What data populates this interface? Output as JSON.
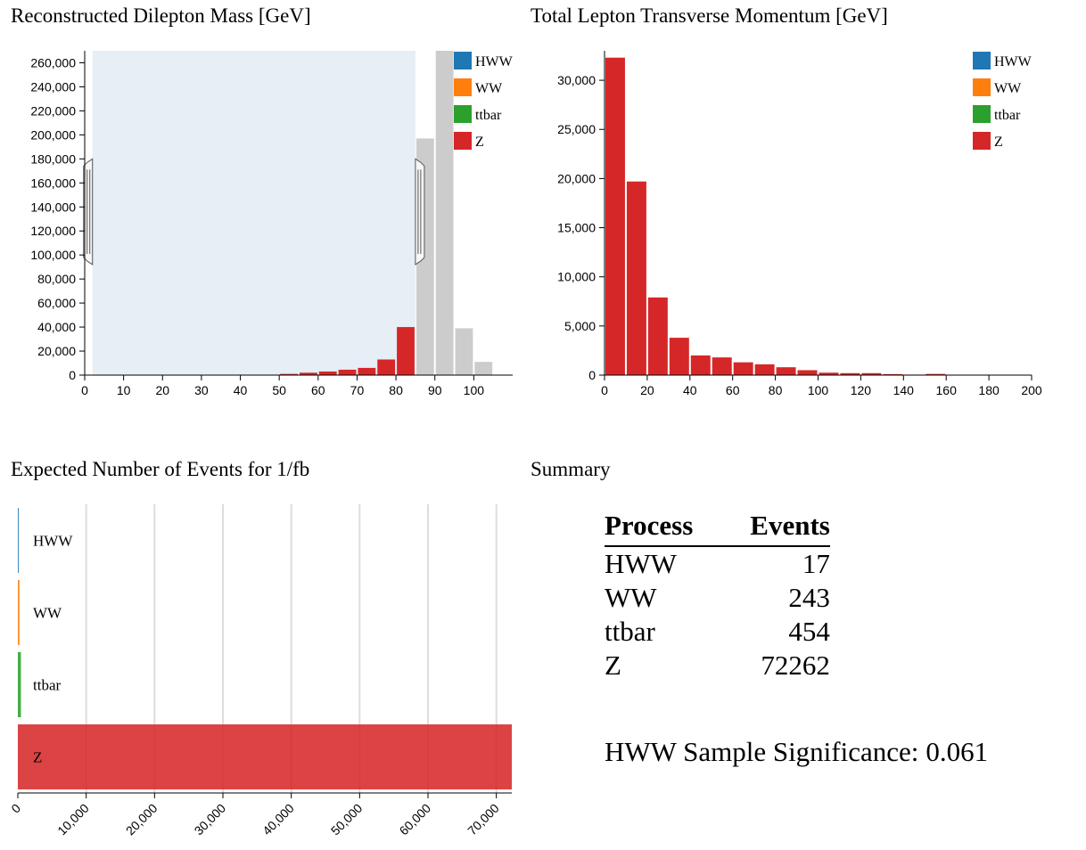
{
  "colors": {
    "HWW": "#1f77b4",
    "WW": "#ff7f0e",
    "ttbar": "#2ca02c",
    "Z": "#d62728",
    "selected_out": "#cccccc",
    "brush": "#e6eef6"
  },
  "titles": {
    "mass": "Reconstructed Dilepton Mass [GeV]",
    "pt": "Total Lepton Transverse Momentum [GeV]",
    "events": "Expected Number of Events for 1/fb",
    "summary": "Summary"
  },
  "summary": {
    "headers": {
      "process": "Process",
      "events": "Events"
    },
    "rows": [
      {
        "process": "HWW",
        "events": "17"
      },
      {
        "process": "WW",
        "events": "243"
      },
      {
        "process": "ttbar",
        "events": "454"
      },
      {
        "process": "Z",
        "events": "72262"
      }
    ],
    "significance_label": "HWW Sample Significance:",
    "significance_value": "0.061"
  },
  "chart_data": [
    {
      "type": "bar",
      "title": "Reconstructed Dilepton Mass [GeV]",
      "xlim": [
        0,
        110
      ],
      "ylim": [
        0,
        270000
      ],
      "xticks": [
        0,
        10,
        20,
        30,
        40,
        50,
        60,
        70,
        80,
        90,
        100
      ],
      "yticks": [
        0,
        20000,
        40000,
        60000,
        80000,
        100000,
        120000,
        140000,
        160000,
        180000,
        200000,
        220000,
        240000,
        260000
      ],
      "bin_width": 5,
      "brush": [
        2,
        85
      ],
      "legend": [
        "HWW",
        "WW",
        "ttbar",
        "Z"
      ],
      "legend_position": "top-right",
      "bins": [
        {
          "x0": 50,
          "value": 1000,
          "selected": true
        },
        {
          "x0": 55,
          "value": 2000,
          "selected": true
        },
        {
          "x0": 60,
          "value": 3000,
          "selected": true
        },
        {
          "x0": 65,
          "value": 4500,
          "selected": true
        },
        {
          "x0": 70,
          "value": 6000,
          "selected": true
        },
        {
          "x0": 75,
          "value": 13000,
          "selected": true
        },
        {
          "x0": 80,
          "value": 40000,
          "selected": true
        },
        {
          "x0": 85,
          "value": 197000,
          "selected": false
        },
        {
          "x0": 90,
          "value": 270000,
          "selected": false
        },
        {
          "x0": 95,
          "value": 39000,
          "selected": false
        },
        {
          "x0": 100,
          "value": 11000,
          "selected": false
        }
      ]
    },
    {
      "type": "bar",
      "title": "Total Lepton Transverse Momentum [GeV]",
      "xlim": [
        0,
        200
      ],
      "ylim": [
        0,
        33000
      ],
      "xticks": [
        0,
        20,
        40,
        60,
        80,
        100,
        120,
        140,
        160,
        180,
        200
      ],
      "yticks": [
        0,
        5000,
        10000,
        15000,
        20000,
        25000,
        30000
      ],
      "bin_width": 10,
      "legend": [
        "HWW",
        "WW",
        "ttbar",
        "Z"
      ],
      "legend_position": "top-right",
      "bins": [
        {
          "x0": 0,
          "value": 32300
        },
        {
          "x0": 10,
          "value": 19700
        },
        {
          "x0": 20,
          "value": 7900
        },
        {
          "x0": 30,
          "value": 3800
        },
        {
          "x0": 40,
          "value": 2000
        },
        {
          "x0": 50,
          "value": 1800
        },
        {
          "x0": 60,
          "value": 1300
        },
        {
          "x0": 70,
          "value": 1100
        },
        {
          "x0": 80,
          "value": 800
        },
        {
          "x0": 90,
          "value": 500
        },
        {
          "x0": 100,
          "value": 250
        },
        {
          "x0": 110,
          "value": 200
        },
        {
          "x0": 120,
          "value": 200
        },
        {
          "x0": 130,
          "value": 100
        },
        {
          "x0": 140,
          "value": 50
        },
        {
          "x0": 150,
          "value": 120
        },
        {
          "x0": 160,
          "value": 30
        },
        {
          "x0": 170,
          "value": 20
        },
        {
          "x0": 180,
          "value": 10
        },
        {
          "x0": 190,
          "value": 5
        }
      ]
    },
    {
      "type": "bar",
      "orientation": "horizontal",
      "title": "Expected Number of Events for 1/fb",
      "categories": [
        "HWW",
        "WW",
        "ttbar",
        "Z"
      ],
      "values": [
        17,
        243,
        454,
        72262
      ],
      "xlim": [
        0,
        72262
      ],
      "xticks": [
        0,
        10000,
        20000,
        30000,
        40000,
        50000,
        60000,
        70000
      ],
      "grid": true
    }
  ]
}
